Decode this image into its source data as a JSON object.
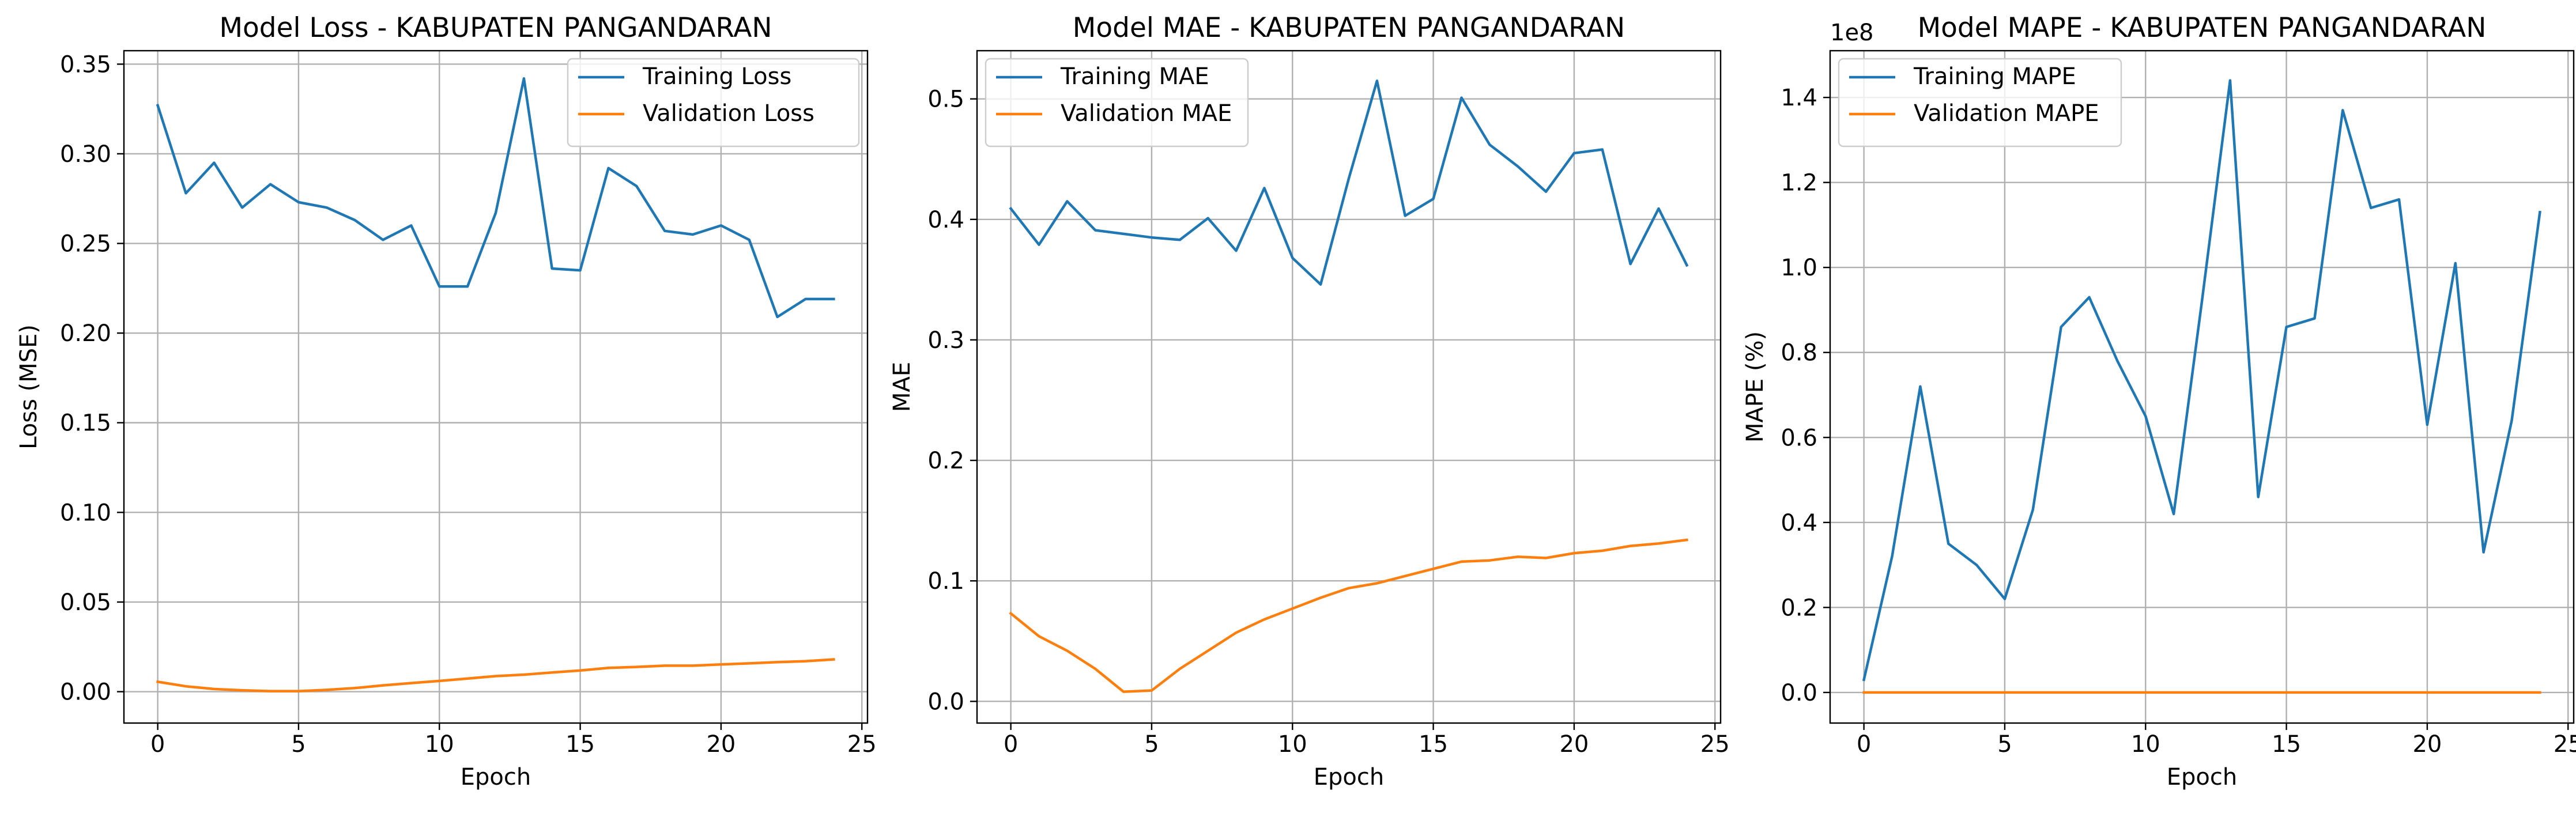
{
  "chart_data": [
    {
      "type": "line",
      "title": "Model Loss - KABUPATEN PANGANDARAN",
      "xlabel": "Epoch",
      "ylabel": "Loss (MSE)",
      "xlim": [
        -1.2,
        25.2
      ],
      "ylim": [
        -0.0175,
        0.3575
      ],
      "xticks": [
        0,
        5,
        10,
        15,
        20,
        25
      ],
      "xtick_labels": [
        "0",
        "5",
        "10",
        "15",
        "20",
        "25"
      ],
      "yticks": [
        0.0,
        0.05,
        0.1,
        0.15,
        0.2,
        0.25,
        0.3,
        0.35
      ],
      "ytick_labels": [
        "0.00",
        "0.05",
        "0.10",
        "0.15",
        "0.20",
        "0.25",
        "0.30",
        "0.35"
      ],
      "grid": true,
      "legend_position": "top-right",
      "x": [
        0,
        1,
        2,
        3,
        4,
        5,
        6,
        7,
        8,
        9,
        10,
        11,
        12,
        13,
        14,
        15,
        16,
        17,
        18,
        19,
        20,
        21,
        22,
        23,
        24
      ],
      "series": [
        {
          "name": "Training Loss",
          "color": "#1f77b4",
          "values": [
            0.327,
            0.278,
            0.295,
            0.27,
            0.283,
            0.273,
            0.27,
            0.263,
            0.252,
            0.26,
            0.226,
            0.226,
            0.267,
            0.342,
            0.236,
            0.235,
            0.292,
            0.282,
            0.257,
            0.255,
            0.26,
            0.252,
            0.209,
            0.219,
            0.219
          ]
        },
        {
          "name": "Validation Loss",
          "color": "#ff7f0e",
          "values": [
            0.0055,
            0.003,
            0.0015,
            0.0008,
            0.0003,
            0.0003,
            0.001,
            0.002,
            0.0035,
            0.0048,
            0.006,
            0.0073,
            0.0087,
            0.0095,
            0.0107,
            0.0118,
            0.0133,
            0.0138,
            0.0145,
            0.0145,
            0.0152,
            0.0158,
            0.0165,
            0.017,
            0.018
          ]
        }
      ]
    },
    {
      "type": "line",
      "title": "Model MAE - KABUPATEN PANGANDARAN",
      "xlabel": "Epoch",
      "ylabel": "MAE",
      "xlim": [
        -1.2,
        25.2
      ],
      "ylim": [
        -0.018,
        0.54
      ],
      "xticks": [
        0,
        5,
        10,
        15,
        20,
        25
      ],
      "xtick_labels": [
        "0",
        "5",
        "10",
        "15",
        "20",
        "25"
      ],
      "yticks": [
        0.0,
        0.1,
        0.2,
        0.3,
        0.4,
        0.5
      ],
      "ytick_labels": [
        "0.0",
        "0.1",
        "0.2",
        "0.3",
        "0.4",
        "0.5"
      ],
      "grid": true,
      "legend_position": "top-left",
      "x": [
        0,
        1,
        2,
        3,
        4,
        5,
        6,
        7,
        8,
        9,
        10,
        11,
        12,
        13,
        14,
        15,
        16,
        17,
        18,
        19,
        20,
        21,
        22,
        23,
        24
      ],
      "series": [
        {
          "name": "Training MAE",
          "color": "#1f77b4",
          "values": [
            0.409,
            0.379,
            0.415,
            0.391,
            0.388,
            0.385,
            0.383,
            0.401,
            0.374,
            0.426,
            0.368,
            0.346,
            0.434,
            0.515,
            0.403,
            0.417,
            0.501,
            0.462,
            0.444,
            0.423,
            0.455,
            0.458,
            0.363,
            0.409,
            0.362
          ]
        },
        {
          "name": "Validation MAE",
          "color": "#ff7f0e",
          "values": [
            0.073,
            0.054,
            0.042,
            0.027,
            0.008,
            0.009,
            0.027,
            0.042,
            0.057,
            0.068,
            0.077,
            0.086,
            0.094,
            0.098,
            0.104,
            0.11,
            0.116,
            0.117,
            0.12,
            0.119,
            0.123,
            0.125,
            0.129,
            0.131,
            0.134
          ]
        }
      ]
    },
    {
      "type": "line",
      "title": "Model MAPE - KABUPATEN PANGANDARAN",
      "xlabel": "Epoch",
      "ylabel": "MAPE (%)",
      "axis_offset_label": "1e8",
      "xlim": [
        -1.2,
        25.2
      ],
      "ylim": [
        -0.072,
        1.51
      ],
      "xticks": [
        0,
        5,
        10,
        15,
        20,
        25
      ],
      "xtick_labels": [
        "0",
        "5",
        "10",
        "15",
        "20",
        "25"
      ],
      "yticks": [
        0.0,
        0.2,
        0.4,
        0.6,
        0.8,
        1.0,
        1.2,
        1.4
      ],
      "ytick_labels": [
        "0.0",
        "0.2",
        "0.4",
        "0.6",
        "0.8",
        "1.0",
        "1.2",
        "1.4"
      ],
      "grid": true,
      "legend_position": "top-left",
      "x": [
        0,
        1,
        2,
        3,
        4,
        5,
        6,
        7,
        8,
        9,
        10,
        11,
        12,
        13,
        14,
        15,
        16,
        17,
        18,
        19,
        20,
        21,
        22,
        23,
        24
      ],
      "series": [
        {
          "name": "Training MAPE",
          "color": "#1f77b4",
          "values": [
            0.03,
            0.32,
            0.72,
            0.35,
            0.3,
            0.22,
            0.43,
            0.86,
            0.93,
            0.78,
            0.65,
            0.42,
            0.92,
            1.44,
            0.46,
            0.86,
            0.88,
            1.37,
            1.14,
            1.16,
            0.63,
            1.01,
            0.33,
            0.64,
            1.13
          ]
        },
        {
          "name": "Validation MAPE",
          "color": "#ff7f0e",
          "values": [
            0,
            0,
            0,
            0,
            0,
            0,
            0,
            0,
            0,
            0,
            0,
            0,
            0,
            0,
            0,
            0,
            0,
            0,
            0,
            0,
            0,
            0,
            0,
            0,
            0
          ]
        }
      ]
    }
  ]
}
